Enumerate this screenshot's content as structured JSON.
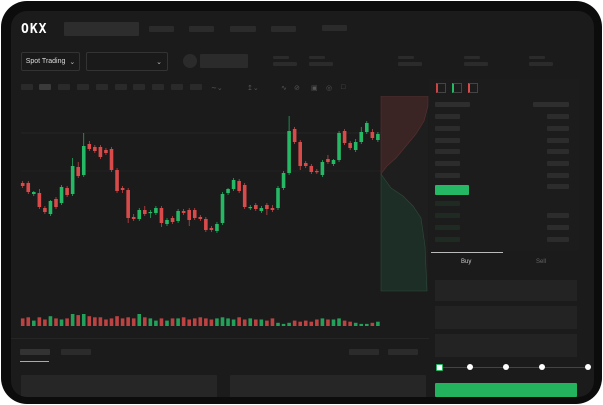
{
  "header": {
    "logo_text": "OKX"
  },
  "toolbar": {
    "mode_label": "Spot Trading",
    "pair_select_value": ""
  },
  "trade_panel": {
    "tabs": [
      {
        "label": "Buy",
        "active": true
      },
      {
        "label": "Sell",
        "active": false
      }
    ],
    "slider_percent": 0
  },
  "colors": {
    "up": "#25b865",
    "down": "#d94a4a",
    "buy_button": "#23b25e",
    "background": "#1b1b1b"
  },
  "icons": [
    "okx-logo",
    "chevron-down-icon",
    "orderbook-both-icon",
    "orderbook-bids-icon",
    "orderbook-asks-icon",
    "camera-icon",
    "settings-icon",
    "fullscreen-icon"
  ],
  "chart_data": {
    "type": "candlestick",
    "title": "",
    "candles": [
      [
        68,
        70,
        63,
        65
      ],
      [
        68,
        70,
        57,
        59
      ],
      [
        57,
        60,
        55,
        59
      ],
      [
        58,
        62,
        42,
        44
      ],
      [
        43,
        45,
        37,
        39
      ],
      [
        37,
        51,
        35,
        50
      ],
      [
        52,
        54,
        42,
        44
      ],
      [
        48,
        66,
        46,
        64
      ],
      [
        63,
        65,
        54,
        56
      ],
      [
        57,
        93,
        55,
        85
      ],
      [
        84,
        89,
        73,
        75
      ],
      [
        76,
        118,
        74,
        105
      ],
      [
        107,
        110,
        100,
        102
      ],
      [
        104,
        106,
        98,
        100
      ],
      [
        104,
        106,
        92,
        94
      ],
      [
        101,
        103,
        96,
        98
      ],
      [
        102,
        104,
        79,
        81
      ],
      [
        81,
        83,
        58,
        60
      ],
      [
        63,
        65,
        58,
        61
      ],
      [
        61,
        63,
        28,
        33
      ],
      [
        34,
        37,
        30,
        32
      ],
      [
        32,
        43,
        30,
        41
      ],
      [
        41,
        45,
        35,
        37
      ],
      [
        38,
        41,
        33,
        39
      ],
      [
        38,
        45,
        36,
        43
      ],
      [
        43,
        45,
        24,
        28
      ],
      [
        27,
        33,
        25,
        31
      ],
      [
        33,
        35,
        27,
        29
      ],
      [
        30,
        42,
        28,
        40
      ],
      [
        40,
        42,
        36,
        38
      ],
      [
        41,
        43,
        25,
        31
      ],
      [
        41,
        43,
        31,
        33
      ],
      [
        34,
        36,
        30,
        32
      ],
      [
        32,
        34,
        19,
        21
      ],
      [
        23,
        25,
        19,
        21
      ],
      [
        20,
        29,
        18,
        27
      ],
      [
        28,
        59,
        26,
        57
      ],
      [
        58,
        63,
        56,
        62
      ],
      [
        62,
        73,
        60,
        71
      ],
      [
        70,
        72,
        58,
        60
      ],
      [
        66,
        68,
        42,
        44
      ],
      [
        43,
        46,
        41,
        44
      ],
      [
        46,
        48,
        40,
        42
      ],
      [
        40,
        45,
        38,
        43
      ],
      [
        46,
        48,
        36,
        42
      ],
      [
        43,
        46,
        39,
        41
      ],
      [
        43,
        65,
        41,
        63
      ],
      [
        63,
        80,
        61,
        78
      ],
      [
        78,
        135,
        76,
        120
      ],
      [
        122,
        124,
        107,
        109
      ],
      [
        109,
        111,
        81,
        85
      ],
      [
        88,
        90,
        83,
        85
      ],
      [
        85,
        87,
        77,
        79
      ],
      [
        80,
        82,
        77,
        79
      ],
      [
        76,
        91,
        74,
        89
      ],
      [
        92,
        96,
        87,
        89
      ],
      [
        87,
        92,
        85,
        91
      ],
      [
        91,
        120,
        89,
        118
      ],
      [
        120,
        122,
        106,
        108
      ],
      [
        108,
        110,
        101,
        103
      ],
      [
        101,
        112,
        99,
        109
      ],
      [
        109,
        124,
        107,
        119
      ],
      [
        119,
        130,
        117,
        128
      ],
      [
        119,
        122,
        111,
        113
      ],
      [
        111,
        119,
        109,
        117
      ]
    ],
    "volume": [
      6,
      7,
      4,
      7,
      5,
      8,
      6,
      5,
      6,
      10,
      9,
      10,
      8,
      7,
      7,
      5,
      6,
      8,
      6,
      7,
      6,
      10,
      7,
      6,
      4,
      6,
      4,
      6,
      6,
      7,
      5,
      6,
      7,
      6,
      5,
      6,
      7,
      6,
      5,
      7,
      5,
      6,
      5,
      5,
      4,
      6,
      2,
      1,
      2,
      4,
      3,
      4,
      3,
      5,
      6,
      5,
      5,
      6,
      4,
      3,
      2,
      1,
      1,
      2,
      3
    ],
    "depth": {
      "asks_color": "#3a2524",
      "bids_color": "#1d2e26"
    }
  }
}
